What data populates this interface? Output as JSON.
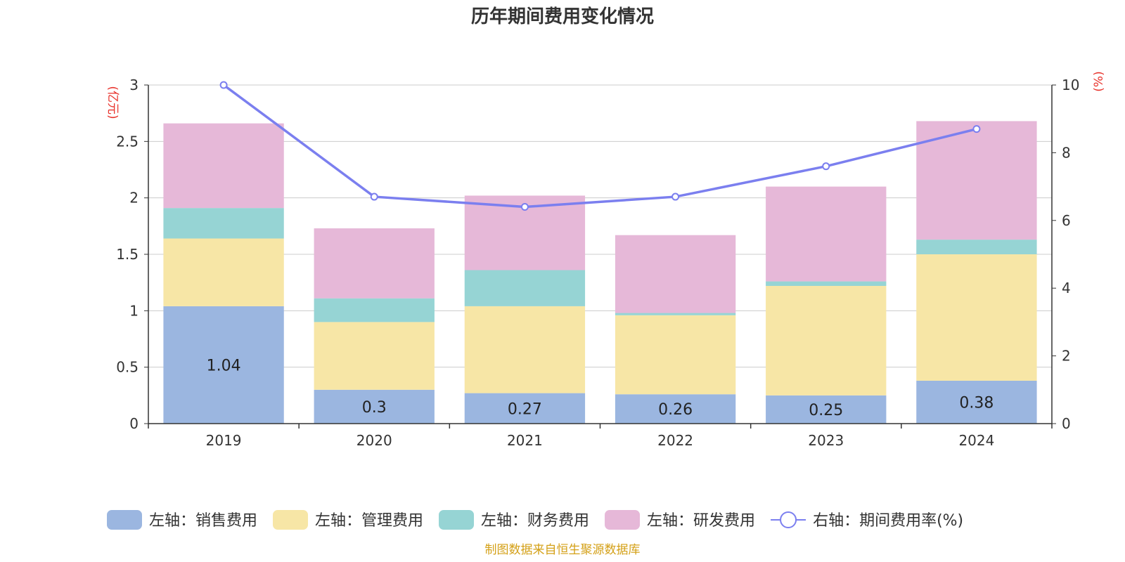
{
  "chart_data": {
    "type": "bar",
    "title": "历年期间费用变化情况",
    "categories": [
      "2019",
      "2020",
      "2021",
      "2022",
      "2023",
      "2024"
    ],
    "y_left": {
      "unit": "(亿元)",
      "ylim": [
        0,
        3
      ],
      "ticks": [
        "0",
        "0.5",
        "1",
        "1.5",
        "2",
        "2.5",
        "3"
      ]
    },
    "y_right": {
      "unit": "(%)",
      "ylim": [
        0,
        10
      ],
      "ticks": [
        "0",
        "2",
        "4",
        "6",
        "8",
        "10"
      ]
    },
    "series": [
      {
        "name": "左轴：销售费用",
        "kind": "bar",
        "axis": "left",
        "color": "#9bb6e0",
        "values": [
          1.04,
          0.3,
          0.27,
          0.26,
          0.25,
          0.38
        ],
        "labels": [
          "1.04",
          "0.3",
          "0.27",
          "0.26",
          "0.25",
          "0.38"
        ]
      },
      {
        "name": "左轴：管理费用",
        "kind": "bar",
        "axis": "left",
        "color": "#f7e6a6",
        "values": [
          0.6,
          0.6,
          0.77,
          0.7,
          0.97,
          1.12
        ]
      },
      {
        "name": "左轴：财务费用",
        "kind": "bar",
        "axis": "left",
        "color": "#96d4d4",
        "values": [
          0.27,
          0.21,
          0.32,
          0.02,
          0.04,
          0.13
        ]
      },
      {
        "name": "左轴：研发费用",
        "kind": "bar",
        "axis": "left",
        "color": "#e6b8d8",
        "values": [
          0.75,
          0.62,
          0.66,
          0.69,
          0.84,
          1.05
        ]
      },
      {
        "name": "右轴：期间费用率(%)",
        "kind": "line",
        "axis": "right",
        "color": "#7b7fef",
        "values": [
          10.0,
          6.7,
          6.4,
          6.7,
          7.6,
          8.7
        ]
      }
    ],
    "grid": true,
    "legend_position": "bottom"
  },
  "source_text": "制图数据来自恒生聚源数据库",
  "colors": {
    "title": "#333333",
    "unit": "#e8322b",
    "source": "#d4a017",
    "grid": "#cccccc"
  }
}
